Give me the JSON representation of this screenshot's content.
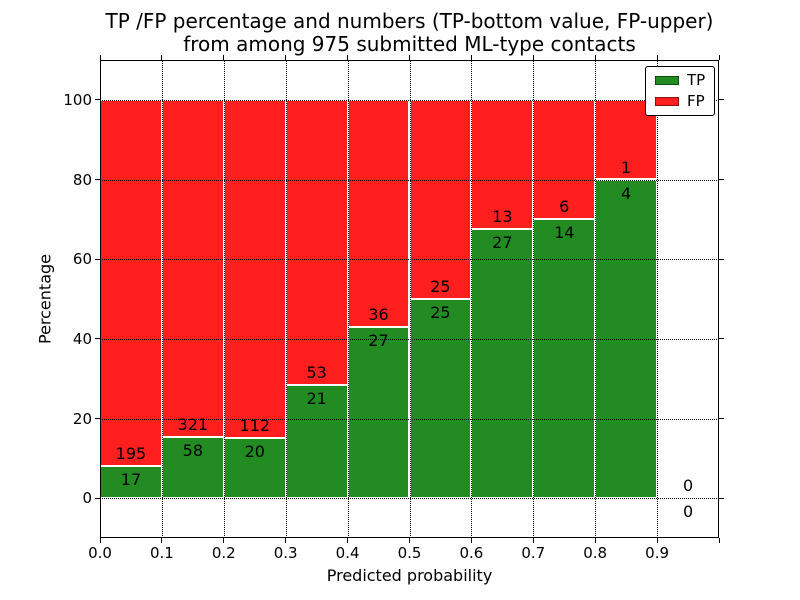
{
  "title": {
    "line1": "TP /FP percentage and numbers (TP-bottom value, FP-upper)",
    "line2": "from among 975 submitted ML-type contacts"
  },
  "chart_data": {
    "type": "bar",
    "stacked": true,
    "title": "TP /FP percentage and numbers (TP-bottom value, FP-upper) from among 975 submitted ML-type contacts",
    "total_contacts": 975,
    "xlabel": "Predicted probability",
    "ylabel": "Percentage",
    "xlim": [
      0.0,
      1.0
    ],
    "ylim": [
      -10,
      110
    ],
    "grid": true,
    "colors": {
      "tp": "#228B22",
      "fp": "#FF1F1F"
    },
    "legend": {
      "position": "upper right",
      "entries": [
        {
          "key": "tp",
          "label": "TP",
          "color": "#228B22"
        },
        {
          "key": "fp",
          "label": "FP",
          "color": "#FF1F1F"
        }
      ]
    },
    "xticks": [
      {
        "v": 0.0,
        "label": "0.0"
      },
      {
        "v": 0.1,
        "label": "0.1"
      },
      {
        "v": 0.2,
        "label": "0.2"
      },
      {
        "v": 0.3,
        "label": "0.3"
      },
      {
        "v": 0.4,
        "label": "0.4"
      },
      {
        "v": 0.5,
        "label": "0.5"
      },
      {
        "v": 0.6,
        "label": "0.6"
      },
      {
        "v": 0.7,
        "label": "0.7"
      },
      {
        "v": 0.8,
        "label": "0.8"
      },
      {
        "v": 0.9,
        "label": "0.9"
      },
      {
        "v": 1.0,
        "label": ""
      }
    ],
    "yticks": [
      {
        "v": 0,
        "label": "0"
      },
      {
        "v": 20,
        "label": "20"
      },
      {
        "v": 40,
        "label": "40"
      },
      {
        "v": 60,
        "label": "60"
      },
      {
        "v": 80,
        "label": "80"
      },
      {
        "v": 100,
        "label": "100"
      }
    ],
    "bins": [
      {
        "x_range": [
          0.0,
          0.1
        ],
        "tp": 17,
        "fp": 195,
        "tp_pct": 8.0
      },
      {
        "x_range": [
          0.1,
          0.2
        ],
        "tp": 58,
        "fp": 321,
        "tp_pct": 15.3
      },
      {
        "x_range": [
          0.2,
          0.3
        ],
        "tp": 20,
        "fp": 112,
        "tp_pct": 15.2
      },
      {
        "x_range": [
          0.3,
          0.4
        ],
        "tp": 21,
        "fp": 53,
        "tp_pct": 28.4
      },
      {
        "x_range": [
          0.4,
          0.5
        ],
        "tp": 27,
        "fp": 36,
        "tp_pct": 42.9
      },
      {
        "x_range": [
          0.5,
          0.6
        ],
        "tp": 25,
        "fp": 25,
        "tp_pct": 50.0
      },
      {
        "x_range": [
          0.6,
          0.7
        ],
        "tp": 27,
        "fp": 13,
        "tp_pct": 67.5
      },
      {
        "x_range": [
          0.7,
          0.8
        ],
        "tp": 14,
        "fp": 6,
        "tp_pct": 70.0
      },
      {
        "x_range": [
          0.8,
          0.9
        ],
        "tp": 4,
        "fp": 1,
        "tp_pct": 80.0
      },
      {
        "x_range": [
          0.9,
          1.0
        ],
        "tp": 0,
        "fp": 0,
        "tp_pct": null
      }
    ]
  }
}
